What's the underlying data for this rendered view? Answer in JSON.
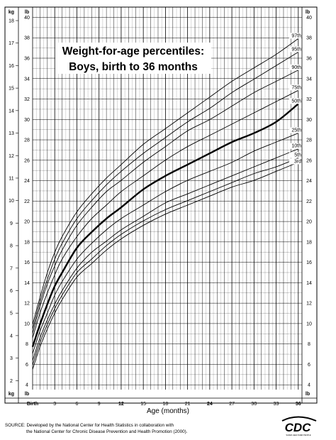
{
  "chart_data": {
    "type": "line",
    "title": "Weight-for-age percentiles:",
    "subtitle": "Boys, birth to 36 months",
    "xlabel": "Age (months)",
    "x_unit_labels": {
      "left_top": "kg",
      "left_bottom": "kg",
      "right_top": "lb",
      "right_bottom": "lb"
    },
    "x_birth_label": "Birth",
    "xlim": [
      0,
      36.5
    ],
    "x_ticks": [
      0,
      3,
      6,
      9,
      12,
      15,
      18,
      21,
      24,
      27,
      30,
      33,
      36
    ],
    "x_tick_labels": [
      "Birth",
      "3",
      "6",
      "9",
      "12",
      "15",
      "18",
      "21",
      "24",
      "27",
      "30",
      "33",
      "36"
    ],
    "x_bold_ticks": [
      12,
      24,
      36
    ],
    "kg_ticks": [
      2,
      3,
      4,
      5,
      6,
      7,
      8,
      9,
      10,
      11,
      12,
      13,
      14,
      15,
      16,
      17,
      18
    ],
    "lb_ticks": [
      4,
      6,
      8,
      10,
      12,
      14,
      16,
      18,
      20,
      22,
      24,
      26,
      28,
      30,
      32,
      34,
      36,
      38,
      40
    ],
    "ylim_kg": [
      1.6,
      18.6
    ],
    "x": [
      0,
      1,
      2,
      3,
      4,
      6,
      8,
      10,
      12,
      15,
      18,
      21,
      24,
      27,
      30,
      33,
      36
    ],
    "series": [
      {
        "name": "97th",
        "bold": false,
        "values_kg": [
          4.5,
          5.7,
          6.8,
          7.7,
          8.4,
          9.5,
          10.3,
          11.0,
          11.6,
          12.5,
          13.2,
          13.9,
          14.6,
          15.3,
          15.9,
          16.5,
          17.2
        ]
      },
      {
        "name": "95th",
        "bold": false,
        "values_kg": [
          4.3,
          5.5,
          6.5,
          7.4,
          8.1,
          9.2,
          10.0,
          10.7,
          11.3,
          12.1,
          12.8,
          13.5,
          14.1,
          14.8,
          15.4,
          16.0,
          16.6
        ]
      },
      {
        "name": "90th",
        "bold": false,
        "values_kg": [
          4.1,
          5.3,
          6.3,
          7.1,
          7.8,
          8.9,
          9.7,
          10.4,
          10.9,
          11.7,
          12.4,
          13.1,
          13.6,
          14.2,
          14.8,
          15.3,
          15.8
        ]
      },
      {
        "name": "75th",
        "bold": false,
        "values_kg": [
          3.9,
          5.0,
          5.9,
          6.7,
          7.4,
          8.4,
          9.2,
          9.8,
          10.4,
          11.1,
          11.8,
          12.4,
          12.9,
          13.4,
          13.9,
          14.4,
          14.9
        ]
      },
      {
        "name": "50th",
        "bold": true,
        "values_kg": [
          3.5,
          4.5,
          5.4,
          6.2,
          6.8,
          7.9,
          8.6,
          9.2,
          9.7,
          10.5,
          11.1,
          11.6,
          12.1,
          12.6,
          13.0,
          13.5,
          14.3
        ]
      },
      {
        "name": "25th",
        "bold": false,
        "values_kg": [
          3.2,
          4.2,
          5.0,
          5.8,
          6.4,
          7.4,
          8.1,
          8.7,
          9.2,
          9.8,
          10.4,
          10.9,
          11.3,
          11.7,
          12.2,
          12.6,
          13.0
        ]
      },
      {
        "name": "10th",
        "bold": false,
        "values_kg": [
          2.9,
          3.9,
          4.7,
          5.4,
          6.0,
          7.0,
          7.7,
          8.2,
          8.7,
          9.3,
          9.9,
          10.3,
          10.7,
          11.1,
          11.5,
          11.9,
          12.3
        ]
      },
      {
        "name": "5th",
        "bold": false,
        "values_kg": [
          2.7,
          3.7,
          4.5,
          5.2,
          5.8,
          6.8,
          7.4,
          8.0,
          8.5,
          9.1,
          9.6,
          10.0,
          10.4,
          10.8,
          11.2,
          11.5,
          11.9
        ]
      },
      {
        "name": "3rd",
        "bold": false,
        "values_kg": [
          2.5,
          3.5,
          4.3,
          5.0,
          5.6,
          6.6,
          7.2,
          7.8,
          8.3,
          8.9,
          9.4,
          9.8,
          10.2,
          10.6,
          10.9,
          11.3,
          11.7
        ]
      }
    ],
    "grid": true,
    "legend": "inline labels at right end of curves"
  },
  "source_lines": [
    "SOURCE: Developed by the National Center for Health Statistics in collaboration with",
    "the National Center for Chronic Disease Prevention and Health Promotion (2000)."
  ],
  "logo": {
    "text": "CDC",
    "subtext": "SAFER·HEALTHIER·PEOPLE"
  }
}
